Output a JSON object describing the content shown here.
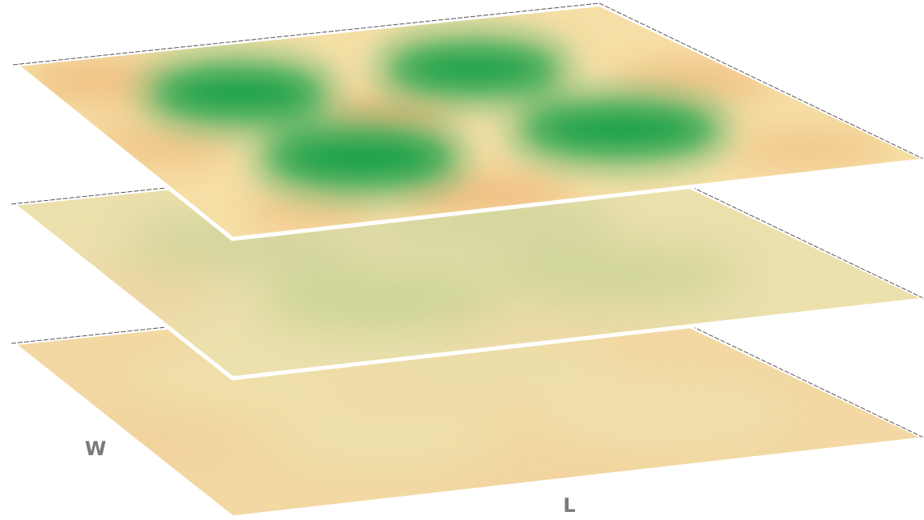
{
  "axes": {
    "width_label": "W",
    "length_label": "L"
  }
}
